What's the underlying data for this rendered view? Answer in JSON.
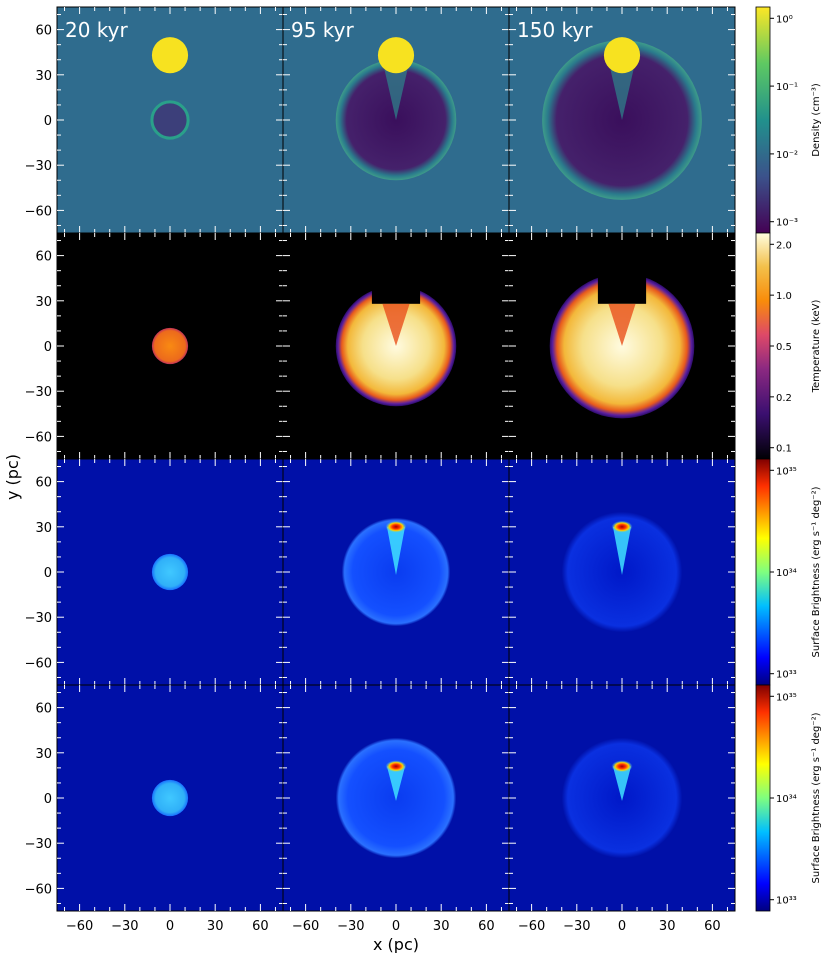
{
  "chart_data": {
    "type": "heatmap",
    "xlabel": "x (pc)",
    "ylabel": "y (pc)",
    "xlim": [
      -75,
      75
    ],
    "ylim": [
      -75,
      75
    ],
    "xticks": [
      "−60",
      "−30",
      "0",
      "30",
      "60"
    ],
    "yticks": [
      "60",
      "30",
      "0",
      "−30",
      "−60"
    ],
    "xtick_values": [
      -60,
      -30,
      0,
      30,
      60
    ],
    "ytick_values": [
      60,
      30,
      0,
      -30,
      -60
    ],
    "time_labels": [
      "20 kyr",
      "95 kyr",
      "150 kyr"
    ],
    "rows": [
      {
        "quantity": "density",
        "colorbar_label": "Density (cm⁻³)",
        "colorbar_ticks": [
          "10⁰",
          "10⁻¹",
          "10⁻²",
          "10⁻³"
        ],
        "colormap": "viridis",
        "background_color": "#2f6c8e",
        "cloud": {
          "x": 0,
          "y": 43,
          "r": 12,
          "color": "#f7e220"
        },
        "remnants": [
          {
            "x": 0,
            "y": 0,
            "r": 12
          },
          {
            "x": 0,
            "y": 0,
            "r": 40
          },
          {
            "x": 0,
            "y": 0,
            "r": 53
          }
        ]
      },
      {
        "quantity": "temperature",
        "colorbar_label": "Temperature (keV)",
        "colorbar_ticks": [
          "2.0",
          "1.0",
          "0.5",
          "0.2",
          "0.1"
        ],
        "colormap": "inferno",
        "background_color": "#000000",
        "remnants": [
          {
            "x": 0,
            "y": 0,
            "r": 12
          },
          {
            "x": 0,
            "y": 0,
            "r": 40
          },
          {
            "x": 0,
            "y": 0,
            "r": 48
          }
        ]
      },
      {
        "quantity": "surface_brightness",
        "colorbar_label": "Surface Brightness (erg s⁻¹ deg⁻²)",
        "colorbar_ticks": [
          "10³⁵",
          "10³⁴",
          "10³³"
        ],
        "colormap": "jet",
        "background_color": "#0010a8",
        "remnants": [
          {
            "x": 0,
            "y": 0,
            "r": 12
          },
          {
            "x": 0,
            "y": 0,
            "r": 36
          },
          {
            "x": 0,
            "y": 0,
            "r": 40
          }
        ],
        "hotspot_y": 30
      },
      {
        "quantity": "surface_brightness",
        "colorbar_label": "Surface Brightness (erg s⁻¹ deg⁻²)",
        "colorbar_ticks": [
          "10³⁵",
          "10³⁴",
          "10³³"
        ],
        "colormap": "jet",
        "background_color": "#0010a8",
        "remnants": [
          {
            "x": 0,
            "y": 0,
            "r": 12
          },
          {
            "x": 0,
            "y": 0,
            "r": 40
          },
          {
            "x": 0,
            "y": 0,
            "r": 40
          }
        ],
        "hotspot_y": 21
      }
    ]
  }
}
